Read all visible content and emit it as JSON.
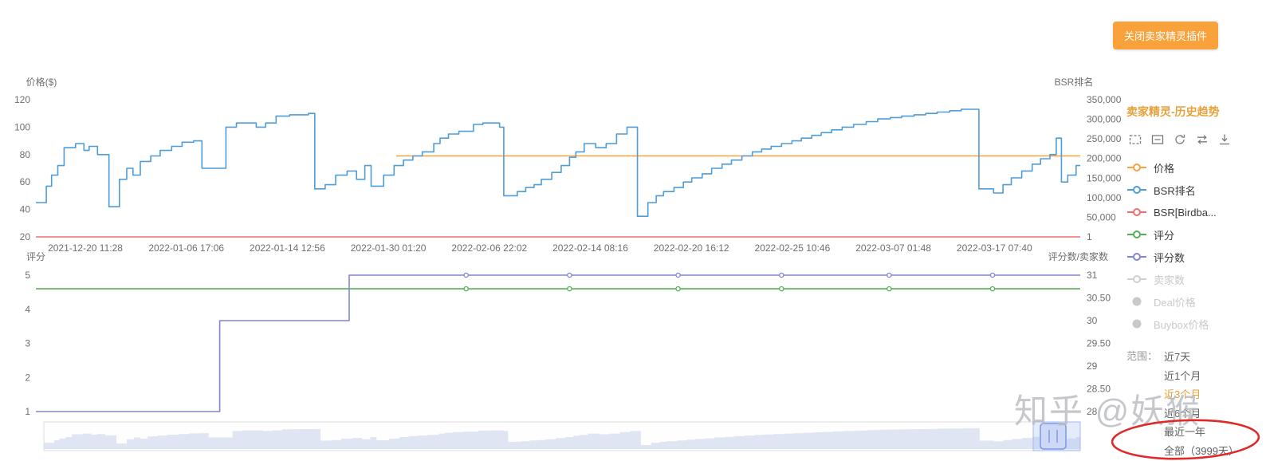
{
  "header": {
    "close_button": "关闭卖家精灵插件"
  },
  "panel": {
    "title": "卖家精灵-历史趋势",
    "toolbox_icons": [
      "box-select",
      "box-zoom",
      "refresh",
      "swap-axes",
      "download"
    ],
    "legend": [
      {
        "id": "price",
        "label": "价格",
        "color": "#F6A43B",
        "marker": "line",
        "state": "active"
      },
      {
        "id": "bsr-rank",
        "label": "BSR排名",
        "color": "#4E9CD8",
        "marker": "line",
        "state": "active"
      },
      {
        "id": "bsr-sub",
        "label": "BSR[Birdba...",
        "color": "#F06E6E",
        "marker": "line",
        "state": "active"
      },
      {
        "id": "rating",
        "label": "评分",
        "color": "#55B055",
        "marker": "line",
        "state": "active"
      },
      {
        "id": "rating-count",
        "label": "评分数",
        "color": "#8084D2",
        "marker": "line",
        "state": "active"
      },
      {
        "id": "seller-count",
        "label": "卖家数",
        "color": "#CFCFCF",
        "marker": "line",
        "state": "disabled"
      },
      {
        "id": "deal-price",
        "label": "Deal价格",
        "color": "#C9C9C9",
        "marker": "dot",
        "state": "disabled"
      },
      {
        "id": "buybox-price",
        "label": "Buybox价格",
        "color": "#C9C9C9",
        "marker": "dot",
        "state": "disabled"
      }
    ],
    "range": {
      "label": "范围：",
      "options": [
        {
          "label": "近7天",
          "selected": false
        },
        {
          "label": "近1个月",
          "selected": false
        },
        {
          "label": "近3个月",
          "selected": true
        },
        {
          "label": "近6个月",
          "selected": false
        },
        {
          "label": "最近一年",
          "selected": false
        },
        {
          "label": "全部（3999天）",
          "selected": false
        }
      ]
    }
  },
  "watermark": "知乎 @妖猴",
  "annotation": {
    "type": "ellipse",
    "target": "全部（3999天）",
    "color": "#E02A2A"
  },
  "chart_data": [
    {
      "type": "line",
      "title": "卖家精灵-历史趋势 (价格 / BSR排名)",
      "y_left": {
        "label": "价格($)",
        "ticks": [
          "120",
          "100",
          "80",
          "60",
          "40",
          "20"
        ],
        "min": 20,
        "max": 120
      },
      "y_right": {
        "label": "BSR排名",
        "ticks": [
          "350,000",
          "300,000",
          "250,000",
          "200,000",
          "150,000",
          "100,000",
          "50,000",
          "1"
        ],
        "min": 1,
        "max": 350000
      },
      "x_ticks": [
        "2021-12-20 11:28",
        "2022-01-06 17:06",
        "2022-01-14 12:56",
        "2022-01-30 01:20",
        "2022-02-06 22:02",
        "2022-02-14 08:16",
        "2022-02-20 16:12",
        "2022-02-25 10:46",
        "2022-03-07 01:48",
        "2022-03-17 07:40"
      ],
      "series": [
        {
          "id": "price",
          "name": "价格",
          "axis": "left",
          "color": "#F6A43B",
          "step": false,
          "points": [
            [
              0.345,
              79
            ],
            [
              1,
              79
            ]
          ]
        },
        {
          "id": "bsr-sub",
          "name": "BSR[Birdba...",
          "axis": "right",
          "color": "#F06E6E",
          "step": false,
          "points": [
            [
              0,
              1
            ],
            [
              1,
              1
            ]
          ]
        },
        {
          "id": "bsr-rank",
          "name": "BSR排名",
          "axis": "right",
          "color": "#4E9CD8",
          "step": true,
          "points": [
            [
              0.0,
              87500
            ],
            [
              0.01,
              129500
            ],
            [
              0.015,
              157500
            ],
            [
              0.021,
              182000
            ],
            [
              0.027,
              227500
            ],
            [
              0.038,
              238000
            ],
            [
              0.046,
              220500
            ],
            [
              0.051,
              231000
            ],
            [
              0.059,
              210000
            ],
            [
              0.07,
              77000
            ],
            [
              0.08,
              147000
            ],
            [
              0.087,
              175000
            ],
            [
              0.093,
              157500
            ],
            [
              0.1,
              192500
            ],
            [
              0.11,
              206500
            ],
            [
              0.119,
              220500
            ],
            [
              0.13,
              231000
            ],
            [
              0.14,
              241500
            ],
            [
              0.151,
              245000
            ],
            [
              0.159,
              175000
            ],
            [
              0.182,
              280000
            ],
            [
              0.192,
              290500
            ],
            [
              0.211,
              280000
            ],
            [
              0.22,
              290500
            ],
            [
              0.23,
              308000
            ],
            [
              0.243,
              311500
            ],
            [
              0.261,
              315000
            ],
            [
              0.267,
              122500
            ],
            [
              0.277,
              133000
            ],
            [
              0.287,
              157500
            ],
            [
              0.298,
              168000
            ],
            [
              0.307,
              147000
            ],
            [
              0.315,
              182000
            ],
            [
              0.321,
              129500
            ],
            [
              0.333,
              157500
            ],
            [
              0.343,
              182000
            ],
            [
              0.352,
              196000
            ],
            [
              0.361,
              206500
            ],
            [
              0.37,
              217000
            ],
            [
              0.381,
              238000
            ],
            [
              0.387,
              252000
            ],
            [
              0.395,
              262500
            ],
            [
              0.405,
              269500
            ],
            [
              0.419,
              287000
            ],
            [
              0.428,
              290500
            ],
            [
              0.444,
              280000
            ],
            [
              0.448,
              105000
            ],
            [
              0.461,
              115500
            ],
            [
              0.469,
              126000
            ],
            [
              0.477,
              133000
            ],
            [
              0.484,
              147000
            ],
            [
              0.494,
              164500
            ],
            [
              0.503,
              182000
            ],
            [
              0.511,
              203000
            ],
            [
              0.517,
              217000
            ],
            [
              0.525,
              238000
            ],
            [
              0.536,
              227500
            ],
            [
              0.546,
              238000
            ],
            [
              0.556,
              262500
            ],
            [
              0.566,
              280000
            ],
            [
              0.576,
              52500
            ],
            [
              0.586,
              87500
            ],
            [
              0.594,
              105000
            ],
            [
              0.601,
              115500
            ],
            [
              0.611,
              126000
            ],
            [
              0.62,
              140000
            ],
            [
              0.628,
              150500
            ],
            [
              0.638,
              161000
            ],
            [
              0.647,
              175000
            ],
            [
              0.657,
              185500
            ],
            [
              0.666,
              196000
            ],
            [
              0.676,
              206500
            ],
            [
              0.686,
              217000
            ],
            [
              0.695,
              224000
            ],
            [
              0.704,
              231000
            ],
            [
              0.714,
              238000
            ],
            [
              0.724,
              245000
            ],
            [
              0.733,
              252000
            ],
            [
              0.743,
              259000
            ],
            [
              0.752,
              266000
            ],
            [
              0.762,
              273000
            ],
            [
              0.772,
              280000
            ],
            [
              0.783,
              287000
            ],
            [
              0.795,
              294000
            ],
            [
              0.806,
              301000
            ],
            [
              0.818,
              304500
            ],
            [
              0.829,
              308000
            ],
            [
              0.841,
              311500
            ],
            [
              0.852,
              315000
            ],
            [
              0.863,
              318500
            ],
            [
              0.875,
              322000
            ],
            [
              0.886,
              325500
            ],
            [
              0.903,
              122500
            ],
            [
              0.917,
              112000
            ],
            [
              0.926,
              133000
            ],
            [
              0.934,
              150500
            ],
            [
              0.944,
              168000
            ],
            [
              0.954,
              185500
            ],
            [
              0.962,
              199500
            ],
            [
              0.971,
              210000
            ],
            [
              0.977,
              252000
            ],
            [
              0.982,
              140000
            ],
            [
              0.988,
              157500
            ],
            [
              0.996,
              182000
            ]
          ]
        }
      ]
    },
    {
      "type": "line",
      "title": "评分 / 评分数",
      "y_left": {
        "label": "评分",
        "ticks": [
          "5",
          "4",
          "3",
          "2",
          "1"
        ],
        "min": 0,
        "max": 5
      },
      "y_right": {
        "label": "评分数/卖家数",
        "ticks": [
          "31",
          "30.50",
          "30",
          "29.50",
          "29",
          "28.50",
          "28"
        ],
        "min": 28,
        "max": 31
      },
      "series": [
        {
          "id": "rating",
          "name": "评分",
          "axis": "left",
          "color": "#55B055",
          "step": false,
          "points": [
            [
              0,
              4.5
            ],
            [
              1,
              4.5
            ]
          ],
          "markers": [
            0.412,
            0.511,
            0.615,
            0.714,
            0.817,
            0.916
          ],
          "marker_value": 4.5
        },
        {
          "id": "rating-count",
          "name": "评分数",
          "axis": "right",
          "color": "#8084D2",
          "step": true,
          "points": [
            [
              0,
              28
            ],
            [
              0.176,
              30
            ],
            [
              0.3,
              31
            ]
          ],
          "markers": [
            0.412,
            0.511,
            0.615,
            0.714,
            0.817,
            0.916
          ],
          "marker_value": 31
        }
      ]
    }
  ]
}
